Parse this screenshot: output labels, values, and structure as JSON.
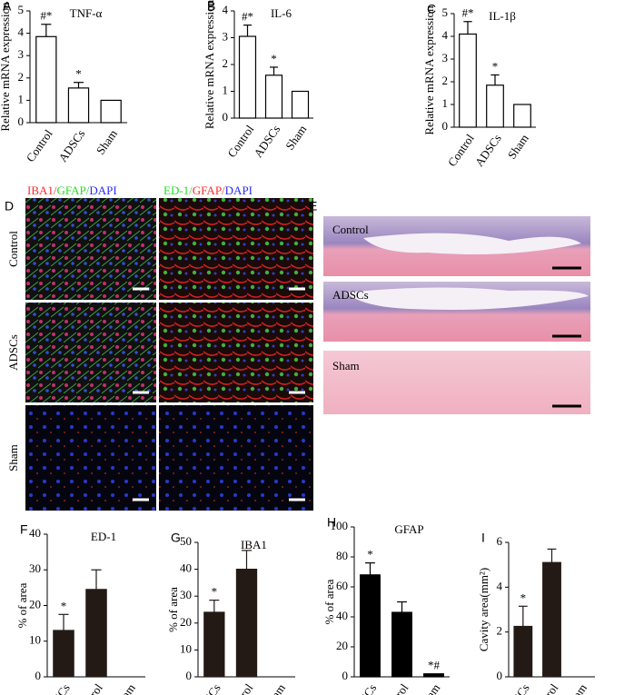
{
  "chart_data": [
    {
      "type": "bar",
      "panel": "A",
      "title": "TNF-α",
      "y_label": "Relative mRNA expression",
      "categories": [
        "Control",
        "ADSCs",
        "Sham"
      ],
      "values": [
        3.85,
        1.55,
        1.0
      ],
      "errors": [
        0.55,
        0.25,
        0
      ],
      "bar_annotations": [
        "#*",
        "*",
        null
      ],
      "color": "#ffffff",
      "edge_color": "#000000",
      "ylim": [
        0,
        5
      ],
      "yticks": [
        0,
        1,
        2,
        3,
        4,
        5
      ]
    },
    {
      "type": "bar",
      "panel": "B",
      "title": "IL-6",
      "y_label": "Relative mRNA expression",
      "categories": [
        "Control",
        "ADSCs",
        "Sham"
      ],
      "values": [
        3.05,
        1.6,
        1.0
      ],
      "errors": [
        0.42,
        0.3,
        0
      ],
      "bar_annotations": [
        "#*",
        "*",
        null
      ],
      "color": "#ffffff",
      "edge_color": "#000000",
      "ylim": [
        0,
        4
      ],
      "yticks": [
        0,
        1,
        2,
        3,
        4
      ]
    },
    {
      "type": "bar",
      "panel": "C",
      "title": "IL-1β",
      "y_label": "Relative mRNA expression",
      "categories": [
        "Control",
        "ADSCs",
        "Sham"
      ],
      "values": [
        4.1,
        1.85,
        1.0
      ],
      "errors": [
        0.55,
        0.45,
        0
      ],
      "bar_annotations": [
        "#*",
        "*",
        null
      ],
      "color": "#ffffff",
      "edge_color": "#000000",
      "ylim": [
        0,
        5
      ],
      "yticks": [
        0,
        1,
        2,
        3,
        4,
        5
      ]
    },
    {
      "type": "bar",
      "panel": "F",
      "title": "ED-1",
      "y_label": "% of area",
      "categories": [
        "ADSCs",
        "Control",
        "Sham"
      ],
      "values": [
        13,
        24.5,
        0
      ],
      "errors": [
        4.5,
        5.5,
        0
      ],
      "bar_annotations": [
        "*",
        null,
        null
      ],
      "color": "#231a16",
      "edge_color": "#231a16",
      "ylim": [
        0,
        40
      ],
      "yticks": [
        0,
        10,
        20,
        30,
        40
      ]
    },
    {
      "type": "bar",
      "panel": "G",
      "title": "IBA1",
      "y_label": "% of area",
      "categories": [
        "ADSCs",
        "Control",
        "Sham"
      ],
      "values": [
        24,
        40,
        0
      ],
      "errors": [
        4.5,
        7,
        0
      ],
      "bar_annotations": [
        "*",
        null,
        null
      ],
      "color": "#231a16",
      "edge_color": "#231a16",
      "ylim": [
        0,
        50
      ],
      "yticks": [
        0,
        10,
        20,
        30,
        40,
        50
      ]
    },
    {
      "type": "bar",
      "panel": "H",
      "title": "GFAP",
      "y_label": "% of area",
      "categories": [
        "ADSCs",
        "Control",
        "Sham"
      ],
      "values": [
        68,
        43,
        2
      ],
      "errors": [
        8,
        7,
        0
      ],
      "bar_annotations": [
        "*",
        null,
        "*#"
      ],
      "color": "#000000",
      "edge_color": "#000000",
      "ylim": [
        0,
        100
      ],
      "yticks": [
        0,
        20,
        40,
        60,
        80,
        100
      ]
    },
    {
      "type": "bar",
      "panel": "I",
      "y_label": "Cavity area(mm²)",
      "categories": [
        "ADSCs",
        "Control",
        "Sham"
      ],
      "values": [
        2.25,
        5.1,
        0
      ],
      "errors": [
        0.9,
        0.6,
        0
      ],
      "bar_annotations": [
        "*",
        null,
        null
      ],
      "color": "#231a16",
      "edge_color": "#231a16",
      "ylim": [
        0,
        6
      ],
      "yticks": [
        0,
        2,
        4,
        6
      ]
    }
  ],
  "image_panels": [
    {
      "label": "D",
      "column_headers": [
        [
          {
            "text": "IBA1/",
            "color": "#ff2a2a"
          },
          {
            "text": "GFAP/",
            "color": "#22dd22"
          },
          {
            "text": "DAPI",
            "color": "#2a2aff"
          }
        ],
        [
          {
            "text": "ED-1/",
            "color": "#22dd22"
          },
          {
            "text": "GFAP/",
            "color": "#ff2a2a"
          },
          {
            "text": "DAPI",
            "color": "#2a2aff"
          }
        ]
      ],
      "row_labels": [
        "Control",
        "ADSCs",
        "Sham"
      ]
    },
    {
      "label": "E",
      "row_labels": [
        "Control",
        "ADSCs",
        "Sham"
      ]
    }
  ]
}
